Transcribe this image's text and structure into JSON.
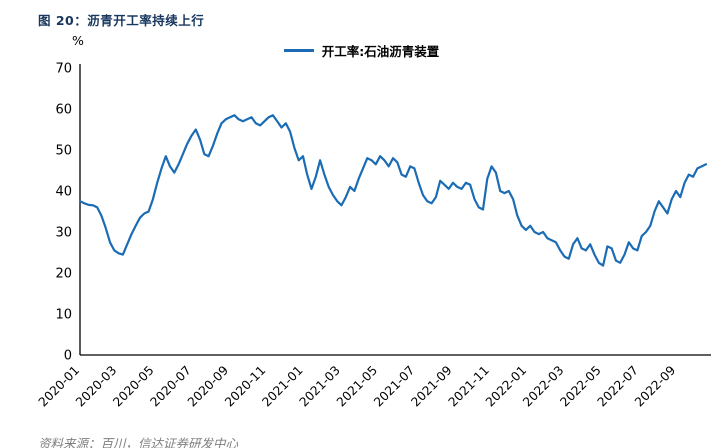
{
  "title": "图 20：沥青开工率持续上行",
  "source": "资料来源：百川，信达证券研发中心",
  "colors": {
    "title": "#17375E",
    "line": "#1B6CB5",
    "axis": "#000000",
    "source_text": "#7F7F7F"
  },
  "chart_data": {
    "type": "line",
    "title": "沥青开工率持续上行",
    "ylabel": "%",
    "ylim": [
      0,
      70
    ],
    "y_ticks": [
      0,
      10,
      20,
      30,
      40,
      50,
      60,
      70
    ],
    "grid": false,
    "legend_position": "top",
    "x_unit": "week",
    "weeks_per_month": 4.345,
    "x_tick_labels": [
      "2020-01",
      "2020-03",
      "2020-05",
      "2020-07",
      "2020-09",
      "2020-11",
      "2021-01",
      "2021-03",
      "2021-05",
      "2021-07",
      "2021-09",
      "2021-11",
      "2022-01",
      "2022-03",
      "2022-05",
      "2022-07",
      "2022-09"
    ],
    "series": [
      {
        "name": "开工率:石油沥青装置",
        "color": "#1B6CB5",
        "values": [
          37.5,
          37.0,
          36.6,
          36.5,
          36.0,
          34.0,
          31.0,
          27.5,
          25.5,
          24.8,
          24.5,
          27.0,
          29.5,
          31.5,
          33.5,
          34.5,
          35.0,
          38.0,
          42.0,
          45.5,
          48.5,
          46.0,
          44.5,
          46.5,
          49.0,
          51.5,
          53.5,
          55.0,
          52.5,
          49.0,
          48.5,
          51.0,
          54.0,
          56.5,
          57.5,
          58.0,
          58.5,
          57.5,
          57.0,
          57.5,
          58.0,
          56.5,
          56.0,
          57.0,
          58.0,
          58.5,
          57.0,
          55.5,
          56.5,
          54.5,
          50.5,
          47.5,
          48.5,
          44.0,
          40.5,
          43.5,
          47.5,
          44.0,
          41.0,
          39.0,
          37.5,
          36.5,
          38.5,
          41.0,
          40.0,
          43.0,
          45.5,
          48.0,
          47.5,
          46.5,
          48.5,
          47.5,
          46.0,
          48.0,
          47.0,
          44.0,
          43.5,
          46.0,
          45.5,
          42.0,
          39.0,
          37.5,
          37.0,
          38.5,
          42.5,
          41.5,
          40.5,
          42.0,
          41.0,
          40.5,
          42.0,
          41.5,
          38.0,
          36.0,
          35.5,
          43.0,
          46.0,
          44.5,
          40.0,
          39.5,
          40.0,
          38.0,
          34.0,
          31.5,
          30.5,
          31.5,
          30.0,
          29.5,
          30.0,
          28.5,
          28.0,
          27.5,
          25.5,
          24.0,
          23.5,
          27.0,
          28.5,
          26.0,
          25.5,
          27.0,
          24.5,
          22.5,
          21.8,
          26.5,
          26.0,
          23.0,
          22.5,
          24.5,
          27.5,
          26.0,
          25.5,
          29.0,
          30.0,
          31.5,
          35.0,
          37.5,
          36.0,
          34.5,
          38.0,
          40.0,
          38.5,
          42.0,
          44.0,
          43.5,
          45.5,
          46.0,
          46.5
        ]
      }
    ]
  }
}
